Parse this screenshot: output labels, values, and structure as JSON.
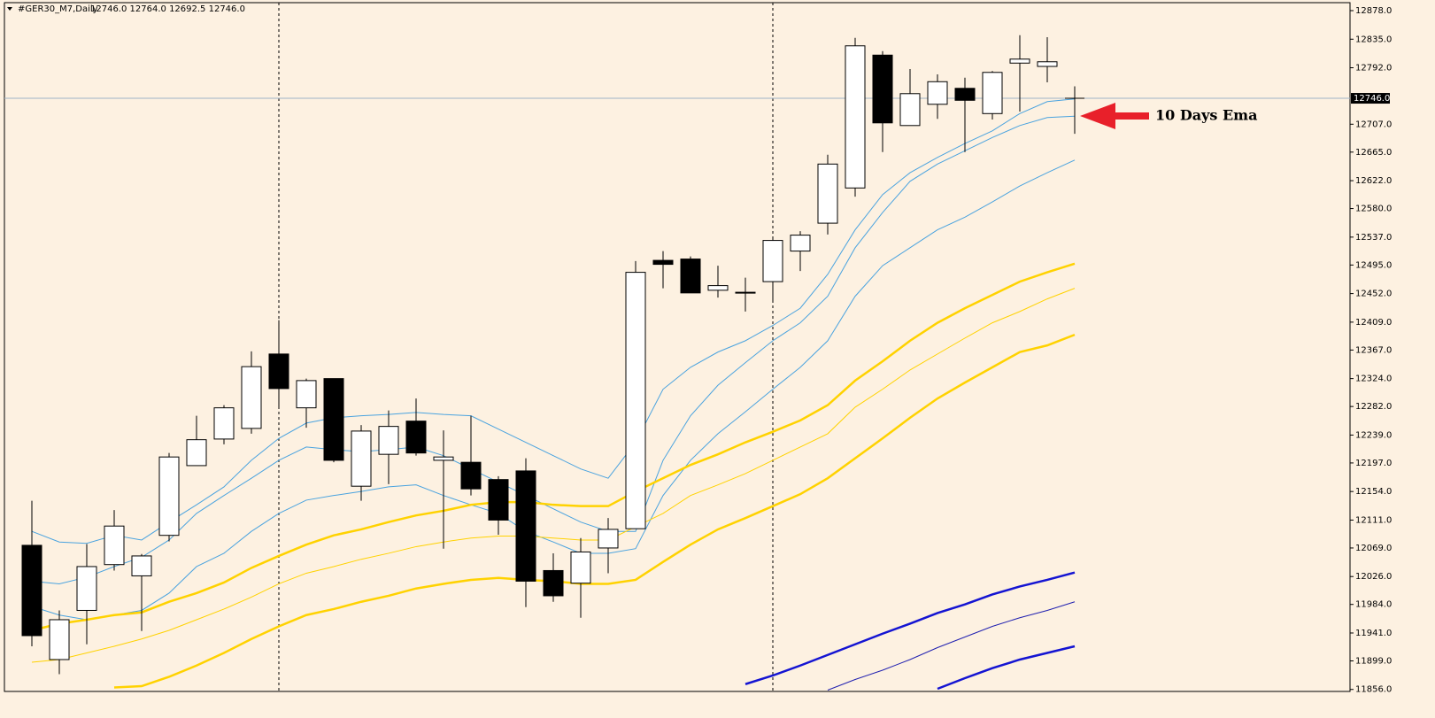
{
  "chart_data": {
    "type": "candlestick",
    "title": "#GER30_M7,Daily",
    "subtitle": "12746.0 12764.0 12692.5 12746.0",
    "categories": [
      null,
      null,
      null,
      null,
      null,
      null,
      null,
      null,
      null,
      null,
      null,
      null,
      null,
      null,
      null,
      null,
      null,
      null,
      null,
      null,
      null,
      null,
      null,
      null,
      null,
      null,
      null,
      null,
      null,
      null,
      null,
      null,
      null,
      null,
      null,
      null,
      null,
      null,
      null
    ],
    "open": [
      12073,
      11901,
      11975,
      12044,
      12027,
      12088,
      12193,
      12233,
      12249,
      12361,
      12280,
      12324,
      12162,
      12210,
      12260,
      12201,
      12198,
      12172,
      12185,
      12035,
      12016,
      12069,
      12098,
      12502,
      12504,
      12457,
      12454,
      12470,
      12516,
      12558,
      12611,
      12811,
      12705,
      12737,
      12761,
      12723,
      12799,
      12794,
      12746
    ],
    "high": [
      12140,
      11975,
      12075,
      12126,
      12060,
      12212,
      12268,
      12284,
      12365,
      12412,
      12324,
      12324,
      12254,
      12276,
      12294,
      12246,
      12268,
      12177,
      12204,
      12061,
      12084,
      12114,
      12501,
      12516,
      12508,
      12494,
      12476,
      12537,
      12546,
      12661,
      12837,
      12817,
      12790,
      12782,
      12777,
      12787,
      12841,
      12838,
      12764
    ],
    "low": [
      11921,
      11879,
      11924,
      12035,
      11944,
      12079,
      12193,
      12225,
      12241,
      12281,
      12250,
      12198,
      12140,
      12165,
      12208,
      12068,
      12148,
      12089,
      11980,
      11988,
      11964,
      12031,
      12098,
      12460,
      12453,
      12446,
      12425,
      12441,
      12486,
      12541,
      12598,
      12665,
      12705,
      12715,
      12665,
      12714,
      12726,
      12770,
      12692.5
    ],
    "close": [
      11937,
      11961,
      12041,
      12102,
      12057,
      12206,
      12232,
      12280,
      12342,
      12309,
      12321,
      12201,
      12245,
      12252,
      12212,
      12206,
      12158,
      12111,
      12019,
      11997,
      12063,
      12097,
      12484,
      12496,
      12453,
      12464,
      12453,
      12532,
      12540,
      12647,
      12825,
      12709,
      12753,
      12771,
      12743,
      12785,
      12805,
      12801,
      12746
    ],
    "up_color": "#ffffff",
    "down_color": "#000000",
    "series": [
      {
        "color": "#4aa3df",
        "weight": "thin",
        "values": [
          12094,
          12078,
          12076,
          12088,
          12081,
          12108,
          12134,
          12161,
          12201,
          12234,
          12257,
          12265,
          12268,
          12270,
          12273,
          12270,
          12268,
          12248,
          12228,
          12208,
          12188,
          12174,
          12228,
          12308,
          12341,
          12364,
          12381,
          12404,
          12430,
          12481,
          12548,
          12601,
          12634,
          12657,
          12678,
          12697,
          12723,
          12741,
          12745
        ]
      },
      {
        "color": "#4aa3df",
        "weight": "thin",
        "values": [
          12019,
          12015,
          12025,
          12041,
          12055,
          12081,
          12121,
          12148,
          12174,
          12201,
          12221,
          12217,
          12214,
          12217,
          12221,
          12208,
          12188,
          12168,
          12148,
          12128,
          12108,
          12094,
          12094,
          12201,
          12268,
          12314,
          12348,
          12381,
          12408,
          12448,
          12521,
          12574,
          12621,
          12647,
          12667,
          12687,
          12705,
          12717,
          12719
        ]
      },
      {
        "color": "#4aa3df",
        "weight": "thin",
        "values": [
          11981,
          11968,
          11961,
          11968,
          11975,
          12001,
          12041,
          12061,
          12094,
          12121,
          12141,
          12148,
          12154,
          12161,
          12164,
          12148,
          12134,
          12121,
          12094,
          12078,
          12061,
          12061,
          12068,
          12148,
          12201,
          12241,
          12274,
          12308,
          12341,
          12381,
          12448,
          12494,
          12521,
          12548,
          12567,
          12590,
          12614,
          12634,
          12653
        ]
      },
      {
        "color": "#ffd200",
        "weight": "thick",
        "values": [
          11945,
          11955,
          11961,
          11968,
          11972,
          11988,
          12001,
          12017,
          12039,
          12057,
          12074,
          12088,
          12097,
          12108,
          12118,
          12125,
          12134,
          12138,
          12138,
          12134,
          12132,
          12132,
          12154,
          12174,
          12194,
          12210,
          12228,
          12244,
          12261,
          12284,
          12321,
          12350,
          12381,
          12408,
          12430,
          12450,
          12470,
          12484,
          12497
        ]
      },
      {
        "color": "#ffd200",
        "weight": "thin",
        "values": [
          11897,
          11901,
          11911,
          11921,
          11932,
          11945,
          11961,
          11977,
          11995,
          12015,
          12031,
          12041,
          12052,
          12061,
          12071,
          12078,
          12084,
          12087,
          12087,
          12084,
          12081,
          12081,
          12101,
          12121,
          12148,
          12164,
          12181,
          12201,
          12221,
          12241,
          12281,
          12308,
          12337,
          12361,
          12385,
          12408,
          12425,
          12444,
          12460
        ]
      },
      {
        "color": "#ffd200",
        "weight": "thick",
        "values": [
          null,
          null,
          null,
          11859,
          11861,
          11875,
          11892,
          11911,
          11932,
          11951,
          11968,
          11977,
          11988,
          11997,
          12008,
          12015,
          12021,
          12024,
          12021,
          12019,
          12015,
          12015,
          12021,
          12048,
          12074,
          12097,
          12114,
          12132,
          12150,
          12174,
          12204,
          12234,
          12265,
          12294,
          12318,
          12341,
          12364,
          12374,
          12390
        ]
      },
      {
        "color": "#1414d2",
        "weight": "thick",
        "values": [
          null,
          null,
          null,
          null,
          null,
          null,
          null,
          null,
          null,
          null,
          null,
          null,
          null,
          null,
          null,
          null,
          null,
          null,
          null,
          null,
          null,
          null,
          null,
          null,
          null,
          null,
          11864,
          11877,
          11892,
          11908,
          11924,
          11940,
          11955,
          11971,
          11984,
          11999,
          12011,
          12021,
          12032
        ]
      },
      {
        "color": "#2020b0",
        "weight": "thin",
        "values": [
          null,
          null,
          null,
          null,
          null,
          null,
          null,
          null,
          null,
          null,
          null,
          null,
          null,
          null,
          null,
          null,
          null,
          null,
          null,
          null,
          null,
          null,
          null,
          null,
          null,
          null,
          null,
          null,
          null,
          11855,
          11871,
          11885,
          11901,
          11919,
          11935,
          11951,
          11964,
          11975,
          11988
        ]
      },
      {
        "color": "#1414d2",
        "weight": "thick",
        "values": [
          null,
          null,
          null,
          null,
          null,
          null,
          null,
          null,
          null,
          null,
          null,
          null,
          null,
          null,
          null,
          null,
          null,
          null,
          null,
          null,
          null,
          null,
          null,
          null,
          null,
          null,
          null,
          null,
          null,
          null,
          null,
          null,
          null,
          11857,
          11873,
          11888,
          11901,
          11911,
          11921
        ]
      }
    ],
    "price_line": {
      "value": 12746,
      "label": "12746.0"
    },
    "annotations": [
      {
        "text": "10 Days Ema",
        "color": "#e8202a"
      }
    ],
    "ylim": [
      11853,
      12890
    ],
    "yticks": [
      {
        "value": 12878,
        "label": "12878.0"
      },
      {
        "value": 12835,
        "label": "12835.0"
      },
      {
        "value": 12792,
        "label": "12792.0"
      },
      {
        "value": 12707,
        "label": "12707.0"
      },
      {
        "value": 12665,
        "label": "12665.0"
      },
      {
        "value": 12622,
        "label": "12622.0"
      },
      {
        "value": 12580,
        "label": "12580.0"
      },
      {
        "value": 12537,
        "label": "12537.0"
      },
      {
        "value": 12495,
        "label": "12495.0"
      },
      {
        "value": 12452,
        "label": "12452.0"
      },
      {
        "value": 12409,
        "label": "12409.0"
      },
      {
        "value": 12367,
        "label": "12367.0"
      },
      {
        "value": 12324,
        "label": "12324.0"
      },
      {
        "value": 12282,
        "label": "12282.0"
      },
      {
        "value": 12239,
        "label": "12239.0"
      },
      {
        "value": 12197,
        "label": "12197.0"
      },
      {
        "value": 12154,
        "label": "12154.0"
      },
      {
        "value": 12111,
        "label": "12111.0"
      },
      {
        "value": 12069,
        "label": "12069.0"
      },
      {
        "value": 12026,
        "label": "12026.0"
      },
      {
        "value": 11984,
        "label": "11984.0"
      },
      {
        "value": 11941,
        "label": "11941.0"
      },
      {
        "value": 11899,
        "label": "11899.0"
      },
      {
        "value": 11856,
        "label": "11856.0"
      }
    ],
    "grid": false
  }
}
